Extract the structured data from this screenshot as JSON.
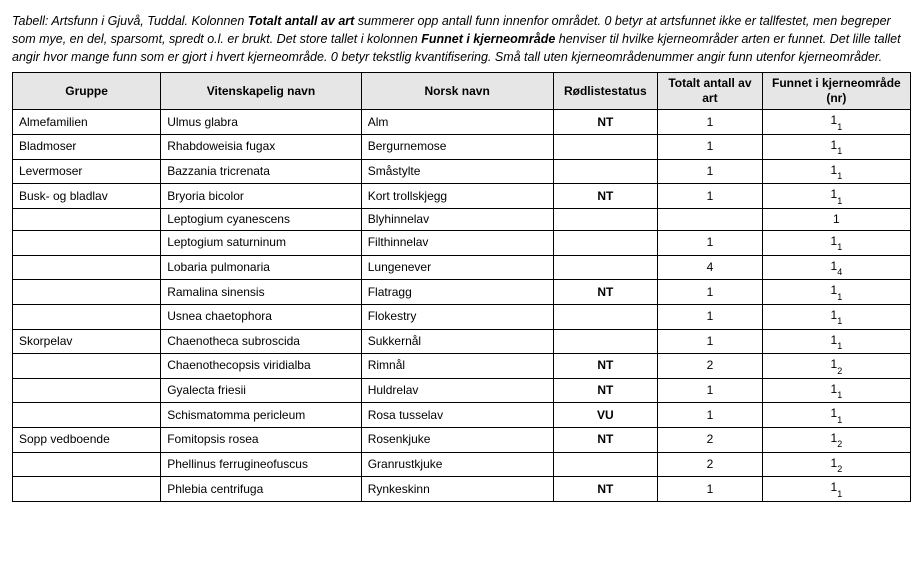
{
  "caption": {
    "parts": [
      {
        "t": "Tabell: Artsfunn i Gjuvå, Tuddal. Kolonnen ",
        "b": false
      },
      {
        "t": "Totalt antall av art",
        "b": true
      },
      {
        "t": " summerer opp antall funn innenfor området. 0 betyr at artsfunnet ikke er tallfestet, men begreper som mye, en del, sparsomt, spredt o.l. er brukt. Det store tallet i kolonnen ",
        "b": false
      },
      {
        "t": "Funnet i kjerneområde",
        "b": true
      },
      {
        "t": " henviser til hvilke kjerneområder arten er funnet. Det lille tallet angir hvor mange funn som er gjort i hvert  kjerneområde. 0 betyr tekstlig kvantifisering. Små tall uten kjerneområdenummer angir funn utenfor kjerne­områder.",
        "b": false
      }
    ]
  },
  "columns": [
    "Gruppe",
    "Vitenskapelig navn",
    "Norsk navn",
    "Rødliste­status",
    "Totalt antall av art",
    "Funnet i kjerne­om­råde (nr)"
  ],
  "rows": [
    {
      "g": "Almefamilien",
      "v": "Ulmus glabra",
      "n": "Alm",
      "r": "NT",
      "t": "1",
      "f": "1",
      "fs": "1"
    },
    {
      "g": "Bladmoser",
      "v": "Rhabdoweisia fugax",
      "n": "Bergurnemose",
      "r": "",
      "t": "1",
      "f": "1",
      "fs": "1"
    },
    {
      "g": "Levermoser",
      "v": "Bazzania tricrenata",
      "n": "Småstylte",
      "r": "",
      "t": "1",
      "f": "1",
      "fs": "1"
    },
    {
      "g": "Busk- og bladlav",
      "v": "Bryoria bicolor",
      "n": "Kort trollskjegg",
      "r": "NT",
      "t": "1",
      "f": "1",
      "fs": "1"
    },
    {
      "g": "",
      "v": "Leptogium cyanescens",
      "n": "Blyhinnelav",
      "r": "",
      "t": "",
      "f": "1",
      "fs": ""
    },
    {
      "g": "",
      "v": "Leptogium saturninum",
      "n": "Filthinnelav",
      "r": "",
      "t": "1",
      "f": "1",
      "fs": "1"
    },
    {
      "g": "",
      "v": "Lobaria pulmonaria",
      "n": "Lungenever",
      "r": "",
      "t": "4",
      "f": "1",
      "fs": "4"
    },
    {
      "g": "",
      "v": "Ramalina sinensis",
      "n": "Flatragg",
      "r": "NT",
      "t": "1",
      "f": "1",
      "fs": "1"
    },
    {
      "g": "",
      "v": "Usnea chaetophora",
      "n": "Flokestry",
      "r": "",
      "t": "1",
      "f": "1",
      "fs": "1"
    },
    {
      "g": "Skorpelav",
      "v": "Chaenotheca subroscida",
      "n": "Sukkernål",
      "r": "",
      "t": "1",
      "f": "1",
      "fs": "1"
    },
    {
      "g": "",
      "v": "Chaenothecopsis viridialba",
      "n": "Rimnål",
      "r": "NT",
      "t": "2",
      "f": "1",
      "fs": "2"
    },
    {
      "g": "",
      "v": "Gyalecta friesii",
      "n": "Huldrelav",
      "r": "NT",
      "t": "1",
      "f": "1",
      "fs": "1"
    },
    {
      "g": "",
      "v": "Schismatomma pericleum",
      "n": "Rosa tusselav",
      "r": "VU",
      "t": "1",
      "f": "1",
      "fs": "1"
    },
    {
      "g": "Sopp vedboende",
      "v": "Fomitopsis rosea",
      "n": "Rosenkjuke",
      "r": "NT",
      "t": "2",
      "f": "1",
      "fs": "2"
    },
    {
      "g": "",
      "v": "Phellinus ferrugineofuscus",
      "n": "Granrustkjuke",
      "r": "",
      "t": "2",
      "f": "1",
      "fs": "2"
    },
    {
      "g": "",
      "v": "Phlebia centrifuga",
      "n": "Rynkeskinn",
      "r": "NT",
      "t": "1",
      "f": "1",
      "fs": "1"
    }
  ]
}
